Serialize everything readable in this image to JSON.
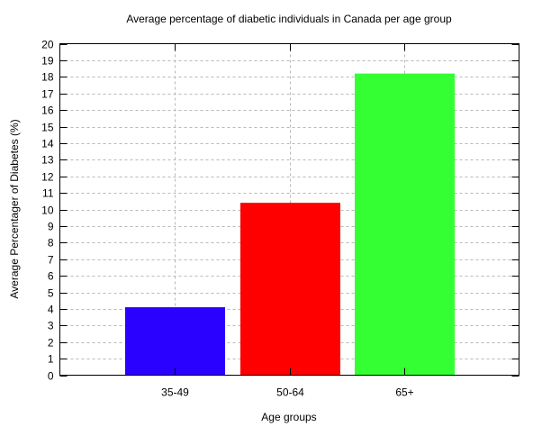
{
  "chart_data": {
    "type": "bar",
    "title": "Average percentage of diabetic individuals in Canada per age group",
    "xlabel": "Age groups",
    "ylabel": "Average Percentager of Diabetes (%)",
    "categories": [
      "35-49",
      "50-64",
      "65+"
    ],
    "values": [
      4.1,
      10.4,
      18.2
    ],
    "colors": [
      "#2a00ff",
      "#ff0000",
      "#33ff33"
    ],
    "ylim": [
      0,
      20
    ],
    "yticks": [
      "0",
      "1",
      "2",
      "3",
      "4",
      "5",
      "6",
      "7",
      "8",
      "9",
      "10",
      "11",
      "12",
      "13",
      "14",
      "15",
      "16",
      "17",
      "18",
      "19",
      "20"
    ],
    "grid": true,
    "legend": "none"
  }
}
